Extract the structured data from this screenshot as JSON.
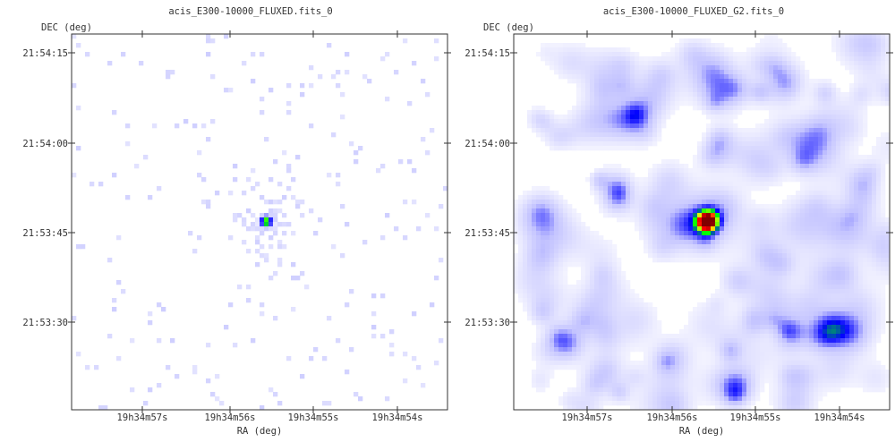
{
  "chart_data": [
    {
      "type": "heatmap",
      "title": "acis_E300-10000_FLUXED.fits_0",
      "xlabel": "RA (deg)",
      "ylabel": "DEC (deg)",
      "x_ticks": [
        "19h34m57s",
        "19h34m56s",
        "19h34m55s",
        "19h34m54s"
      ],
      "y_ticks": [
        "21:54:15",
        "21:54:00",
        "21:53:45",
        "21:53:30"
      ],
      "colormap": [
        "#ffffff",
        "#c8c8ff",
        "#0000ff",
        "#00ff00",
        "#ffff00",
        "#ff0000",
        "#800000"
      ],
      "source": {
        "ra": "19h34m55.8s",
        "dec": "21:53:47",
        "peak": 1.0
      },
      "smoothed": false
    },
    {
      "type": "heatmap",
      "title": "acis_E300-10000_FLUXED_G2.fits_0",
      "xlabel": "RA (deg)",
      "ylabel": "DEC (deg)",
      "x_ticks": [
        "19h34m57s",
        "19h34m56s",
        "19h34m55s",
        "19h34m54s"
      ],
      "y_ticks": [
        "21:54:15",
        "21:54:00",
        "21:53:45",
        "21:53:30"
      ],
      "colormap": [
        "#ffffff",
        "#c8c8ff",
        "#0000ff",
        "#00ff00",
        "#ffff00",
        "#ff0000",
        "#800000"
      ],
      "source": {
        "ra": "19h34m55.8s",
        "dec": "21:53:47",
        "peak": 1.0
      },
      "smoothed": true
    }
  ]
}
